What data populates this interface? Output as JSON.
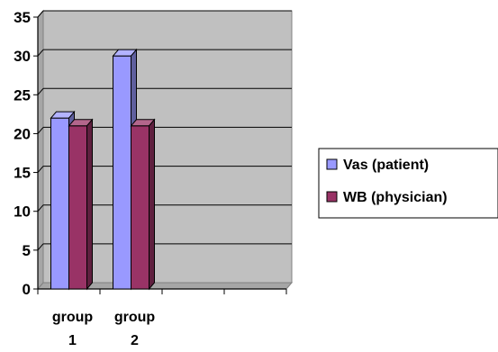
{
  "chart_data": {
    "type": "bar",
    "style": "3d-clustered-column",
    "categories": [
      [
        "group",
        "1"
      ],
      [
        "group",
        "2"
      ],
      [
        "",
        ""
      ],
      [
        "",
        ""
      ]
    ],
    "series": [
      {
        "name": "Vas (patient)",
        "values": [
          22,
          30,
          null,
          null
        ],
        "color": "#9999ff"
      },
      {
        "name": "WB (physician)",
        "values": [
          21,
          21,
          null,
          null
        ],
        "color": "#993366"
      }
    ],
    "yticks": [
      0,
      5,
      10,
      15,
      20,
      25,
      30,
      35
    ],
    "ylim": [
      0,
      35
    ],
    "grid": true,
    "legend": "right",
    "plot_background": "#c0c0c0"
  }
}
